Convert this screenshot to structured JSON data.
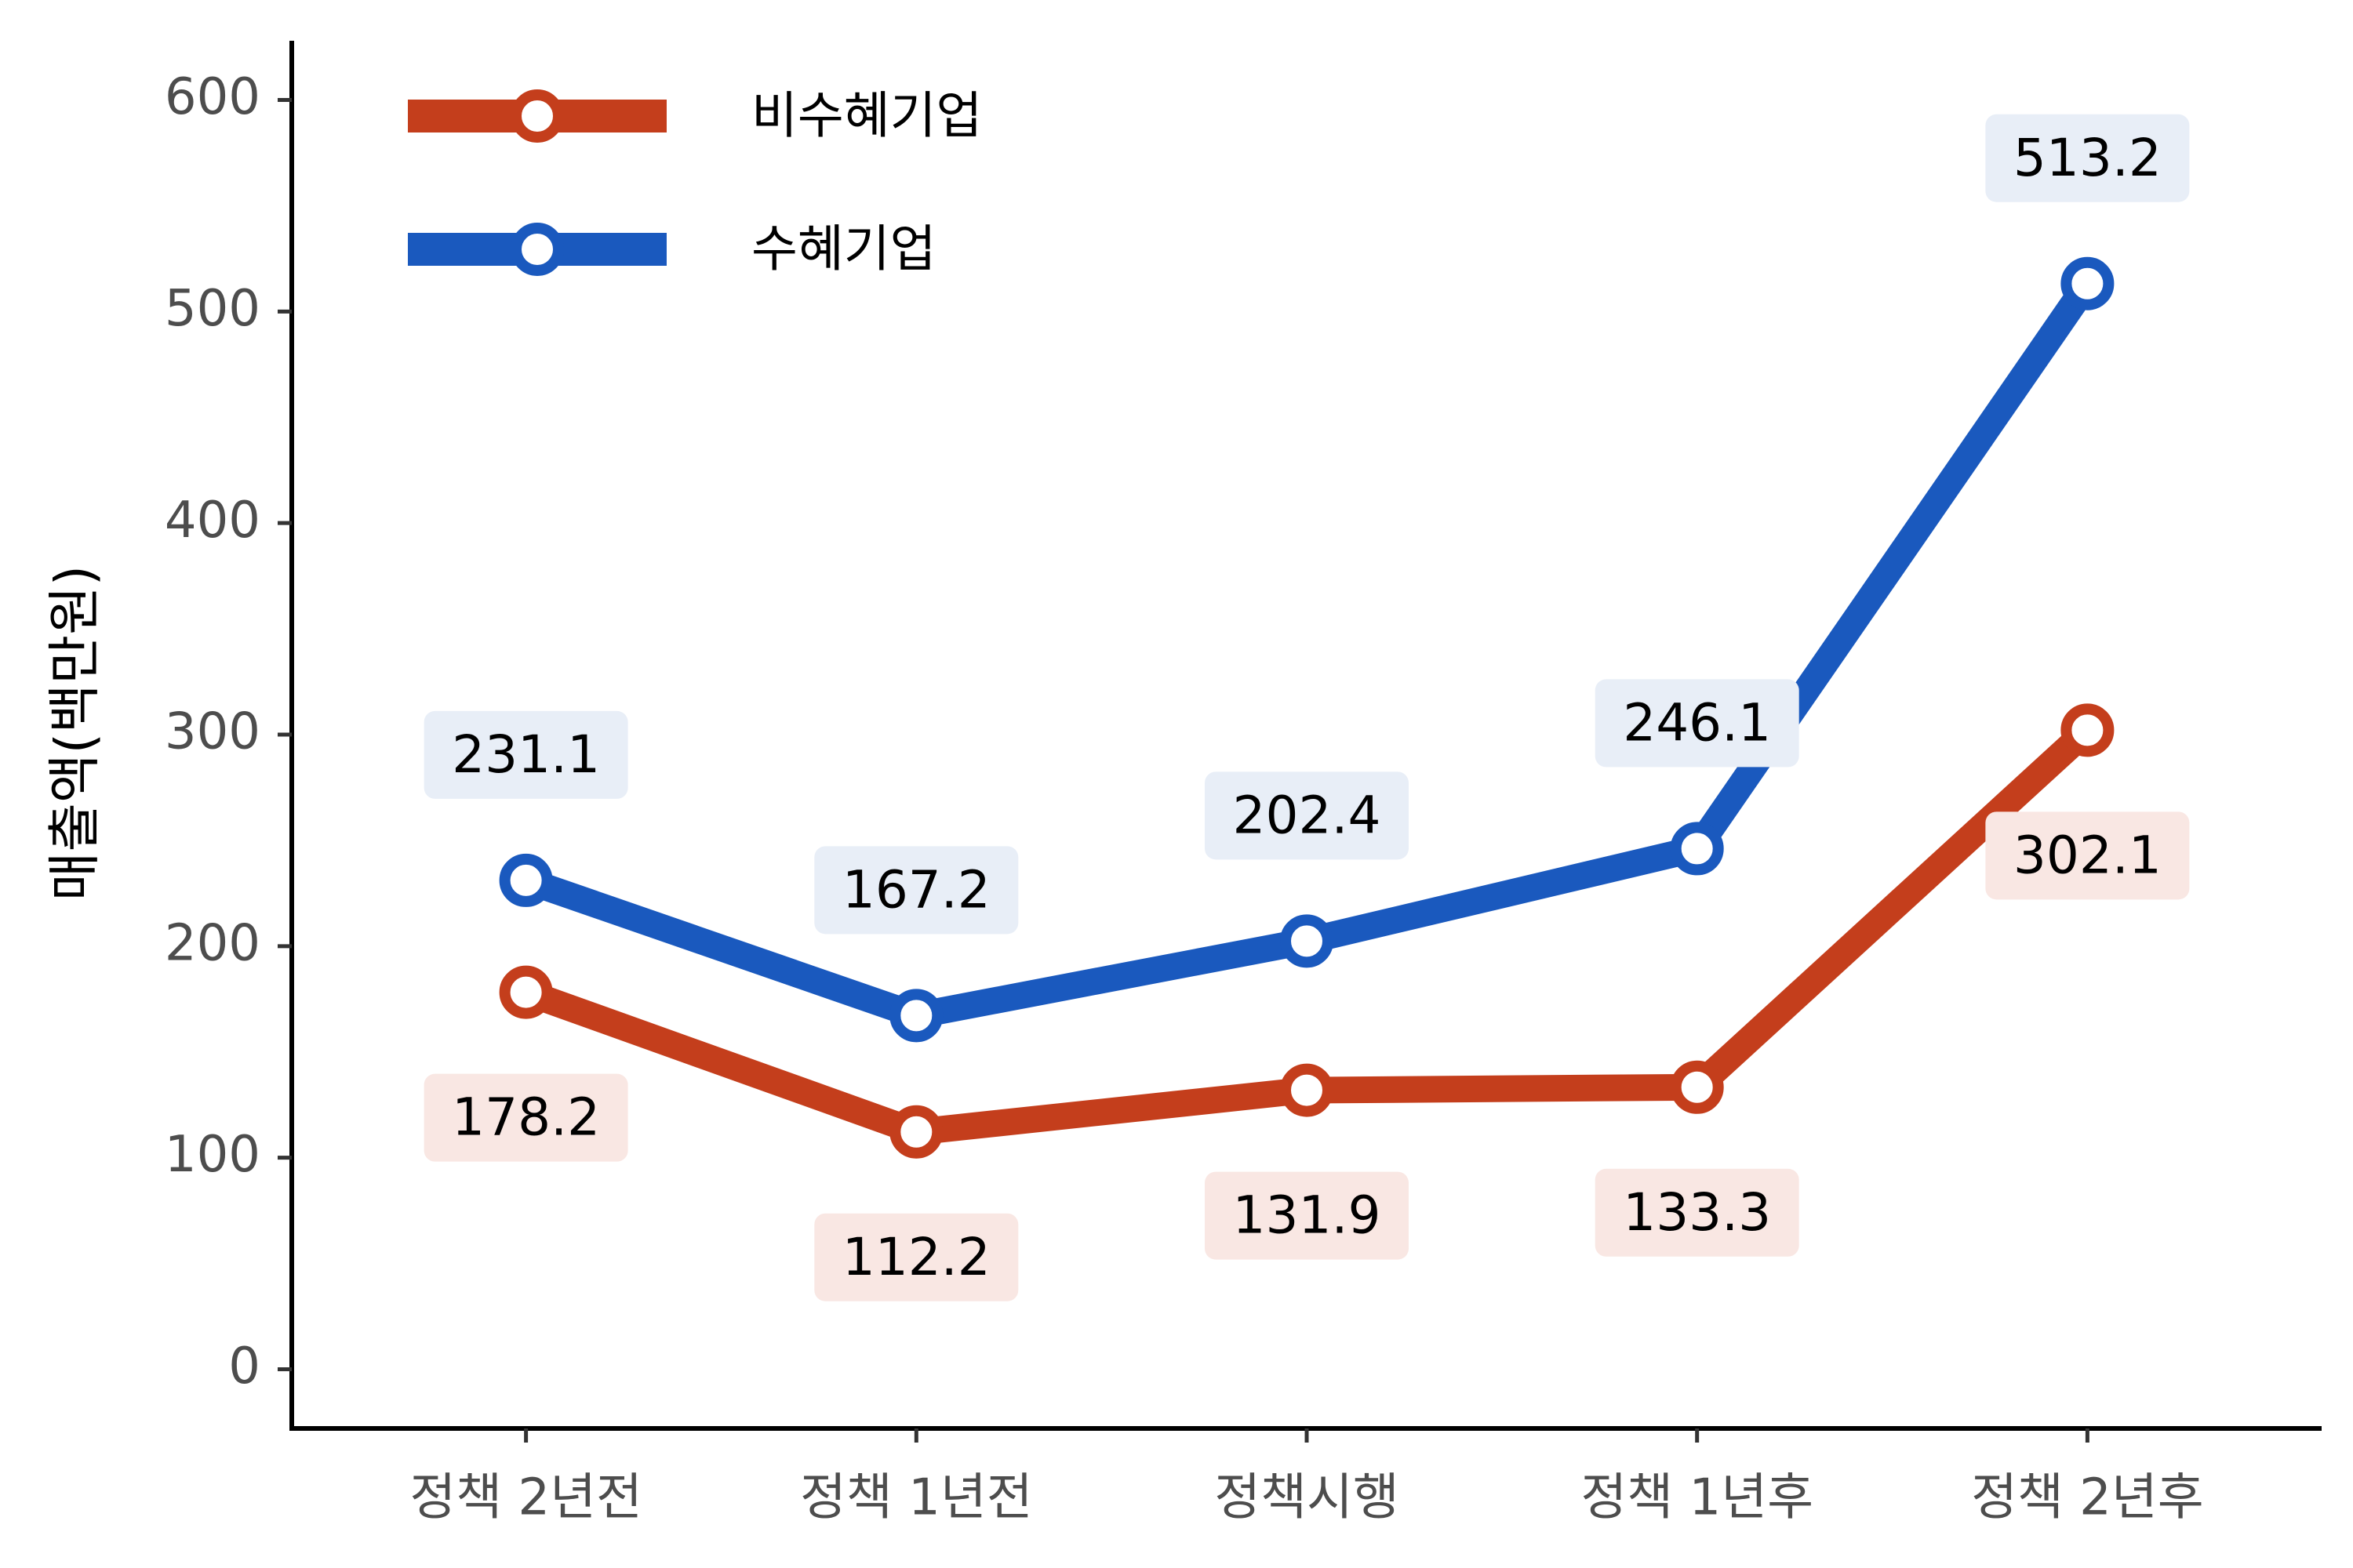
{
  "chart_data": {
    "type": "line",
    "title": "",
    "xlabel": "",
    "ylabel": "매출액(백만원)",
    "categories": [
      "정책 2년전",
      "정책 1년전",
      "정책시행",
      "정책 1년후",
      "정책 2년후"
    ],
    "yticks": [
      0,
      100,
      200,
      300,
      400,
      500,
      600
    ],
    "ylim": [
      -28,
      628
    ],
    "legend_position": "top-left",
    "grid": false,
    "series": [
      {
        "name": "비수혜기업",
        "color": "#C43E1C",
        "label_bg": "#F9E7E3",
        "label_side": "below",
        "values": [
          178.2,
          112.2,
          131.9,
          133.3,
          302.1
        ],
        "labels": [
          "178.2",
          "112.2",
          "131.9",
          "133.3",
          "302.1"
        ]
      },
      {
        "name": "수혜기업",
        "color": "#1A59BE",
        "label_bg": "#E8EEF7",
        "label_side": "above",
        "values": [
          231.1,
          167.2,
          202.4,
          246.1,
          513.2
        ],
        "labels": [
          "231.1",
          "167.2",
          "202.4",
          "246.1",
          "513.2"
        ]
      }
    ]
  }
}
